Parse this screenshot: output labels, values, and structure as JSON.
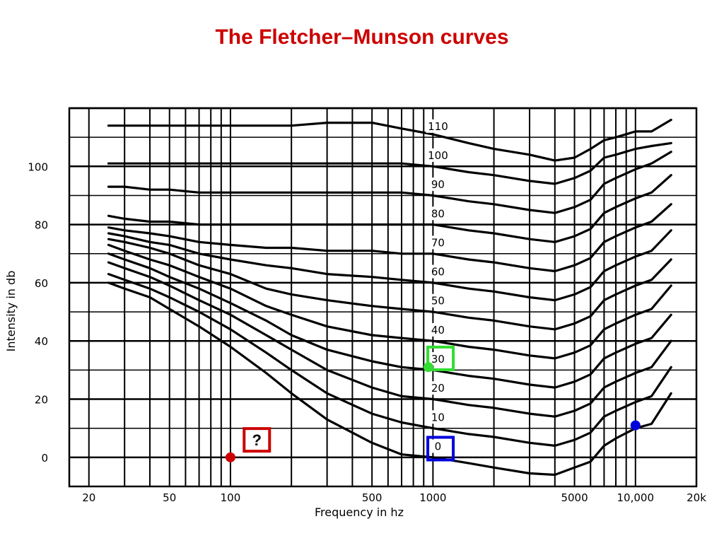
{
  "slide": {
    "title": "The Fletcher–Munson curves"
  },
  "chart_data": {
    "type": "line",
    "title": "",
    "xlabel": "Frequency in hz",
    "ylabel": "Intensity in db",
    "x_scale": "log",
    "xlim": [
      16,
      20000
    ],
    "ylim": [
      -10,
      120
    ],
    "grid": true,
    "x_tick_labels": [
      {
        "value": 20,
        "label": "20"
      },
      {
        "value": 50,
        "label": "50"
      },
      {
        "value": 100,
        "label": "100"
      },
      {
        "value": 500,
        "label": "500"
      },
      {
        "value": 1000,
        "label": "1000"
      },
      {
        "value": 5000,
        "label": "5000"
      },
      {
        "value": 10000,
        "label": "10,000"
      },
      {
        "value": 20000,
        "label": "20k"
      }
    ],
    "x_gridlines": [
      20,
      30,
      40,
      50,
      60,
      70,
      80,
      90,
      100,
      200,
      300,
      400,
      500,
      600,
      700,
      800,
      900,
      1000,
      2000,
      3000,
      4000,
      5000,
      6000,
      7000,
      8000,
      9000,
      10000,
      20000
    ],
    "y_tick_labels": [
      {
        "value": 0,
        "label": "0"
      },
      {
        "value": 20,
        "label": "20"
      },
      {
        "value": 40,
        "label": "40"
      },
      {
        "value": 60,
        "label": "60"
      },
      {
        "value": 80,
        "label": "80"
      },
      {
        "value": 100,
        "label": "100"
      }
    ],
    "y_gridlines": [
      -10,
      0,
      10,
      20,
      30,
      40,
      50,
      60,
      70,
      80,
      90,
      100,
      110,
      120
    ],
    "series": [
      {
        "name": "0",
        "label_at_1k": {
          "x": 1050,
          "y": 3
        },
        "x": [
          25,
          30,
          40,
          50,
          70,
          100,
          150,
          200,
          300,
          500,
          700,
          1000,
          1500,
          2000,
          3000,
          4000,
          5000,
          6000,
          7000,
          8000,
          10000,
          12000,
          15000
        ],
        "y": [
          60,
          58,
          55,
          51,
          45,
          38,
          29,
          22,
          13,
          5,
          1,
          0,
          -2,
          -3.5,
          -5.5,
          -6,
          -3.5,
          -1.5,
          4,
          6.5,
          10,
          11.5,
          22
        ]
      },
      {
        "name": "10",
        "label_at_1k": {
          "x": 1050,
          "y": 13
        },
        "x": [
          25,
          30,
          40,
          50,
          70,
          100,
          150,
          200,
          300,
          500,
          700,
          1000,
          1500,
          2000,
          3000,
          4000,
          5000,
          6000,
          7000,
          8000,
          10000,
          12000,
          15000
        ],
        "y": [
          63,
          61,
          58,
          55,
          50,
          44,
          36,
          30,
          22,
          15,
          12,
          10,
          8,
          7,
          5,
          4,
          6,
          8.5,
          14,
          16,
          19,
          21,
          31
        ]
      },
      {
        "name": "20",
        "label_at_1k": {
          "x": 1050,
          "y": 23
        },
        "x": [
          25,
          30,
          40,
          50,
          70,
          100,
          150,
          200,
          300,
          500,
          700,
          1000,
          1500,
          2000,
          3000,
          4000,
          5000,
          6000,
          7000,
          8000,
          10000,
          12000,
          15000
        ],
        "y": [
          67,
          65,
          62,
          59,
          54,
          49,
          42,
          37,
          30,
          24,
          21,
          20,
          18,
          17,
          15,
          14,
          16,
          18.5,
          24,
          26,
          29,
          31,
          40
        ]
      },
      {
        "name": "30",
        "label_at_1k": {
          "x": 1050,
          "y": 33
        },
        "x": [
          25,
          30,
          40,
          50,
          70,
          100,
          150,
          200,
          300,
          500,
          700,
          1000,
          1500,
          2000,
          3000,
          4000,
          5000,
          6000,
          7000,
          8000,
          10000,
          12000,
          15000
        ],
        "y": [
          70,
          68,
          65,
          62,
          58,
          53,
          47,
          42,
          37,
          33,
          31,
          30,
          28,
          27,
          25,
          24,
          26,
          28.5,
          34,
          36,
          39,
          41,
          49
        ]
      },
      {
        "name": "40",
        "label_at_1k": {
          "x": 1050,
          "y": 43
        },
        "x": [
          25,
          30,
          40,
          50,
          70,
          100,
          150,
          200,
          300,
          500,
          700,
          1000,
          1500,
          2000,
          3000,
          4000,
          5000,
          6000,
          7000,
          8000,
          10000,
          12000,
          15000
        ],
        "y": [
          73,
          71,
          68,
          66,
          62,
          58,
          52,
          49,
          45,
          42,
          41,
          40,
          38,
          37,
          35,
          34,
          36,
          38.5,
          44,
          46,
          49,
          51,
          59
        ]
      },
      {
        "name": "50",
        "label_at_1k": {
          "x": 1050,
          "y": 53
        },
        "x": [
          25,
          30,
          40,
          50,
          70,
          100,
          150,
          200,
          300,
          500,
          700,
          1000,
          1500,
          2000,
          3000,
          4000,
          5000,
          6000,
          7000,
          8000,
          10000,
          12000,
          15000
        ],
        "y": [
          75,
          74,
          72,
          70,
          66,
          63,
          58,
          56,
          54,
          52,
          51,
          50,
          48,
          47,
          45,
          44,
          46,
          48.5,
          54,
          56,
          59,
          61,
          68
        ]
      },
      {
        "name": "60",
        "label_at_1k": {
          "x": 1050,
          "y": 63
        },
        "x": [
          25,
          30,
          40,
          50,
          70,
          100,
          150,
          200,
          300,
          500,
          700,
          1000,
          1500,
          2000,
          3000,
          4000,
          5000,
          6000,
          7000,
          8000,
          10000,
          12000,
          15000
        ],
        "y": [
          77,
          76,
          74,
          73,
          70,
          68,
          66,
          65,
          63,
          62,
          61,
          60,
          58,
          57,
          55,
          54,
          56,
          58.5,
          64,
          66,
          69,
          71,
          78
        ]
      },
      {
        "name": "70",
        "label_at_1k": {
          "x": 1050,
          "y": 73
        },
        "x": [
          25,
          30,
          40,
          50,
          70,
          100,
          150,
          200,
          300,
          500,
          700,
          1000,
          1500,
          2000,
          3000,
          4000,
          5000,
          6000,
          7000,
          8000,
          10000,
          12000,
          15000
        ],
        "y": [
          79,
          78,
          77,
          76,
          74,
          73,
          72,
          72,
          71,
          71,
          70,
          70,
          68,
          67,
          65,
          64,
          66,
          68.5,
          74,
          76,
          79,
          81,
          87
        ]
      },
      {
        "name": "80",
        "label_at_1k": {
          "x": 1050,
          "y": 83
        },
        "x": [
          25,
          30,
          40,
          50,
          70,
          100,
          150,
          200,
          300,
          500,
          700,
          1000,
          1500,
          2000,
          3000,
          4000,
          5000,
          6000,
          7000,
          8000,
          10000,
          12000,
          15000
        ],
        "y": [
          83,
          82,
          81,
          81,
          80,
          80,
          80,
          80,
          80,
          80,
          80,
          80,
          78,
          77,
          75,
          74,
          76,
          78.5,
          84,
          86,
          89,
          91,
          97
        ]
      },
      {
        "name": "90",
        "label_at_1k": {
          "x": 1050,
          "y": 93
        },
        "x": [
          25,
          30,
          40,
          50,
          70,
          100,
          150,
          200,
          300,
          500,
          700,
          1000,
          1500,
          2000,
          3000,
          4000,
          5000,
          6000,
          7000,
          8000,
          10000,
          12000,
          15000
        ],
        "y": [
          93,
          93,
          92,
          92,
          91,
          91,
          91,
          91,
          91,
          91,
          91,
          90,
          88,
          87,
          85,
          84,
          86,
          88.5,
          94,
          96,
          99,
          101,
          105
        ]
      },
      {
        "name": "100",
        "label_at_1k": {
          "x": 1050,
          "y": 103
        },
        "x": [
          25,
          30,
          40,
          50,
          70,
          100,
          150,
          200,
          300,
          500,
          700,
          1000,
          1500,
          2000,
          3000,
          4000,
          5000,
          6000,
          7000,
          8000,
          10000,
          12000,
          15000
        ],
        "y": [
          101,
          101,
          101,
          101,
          101,
          101,
          101,
          101,
          101,
          101,
          101,
          100,
          98,
          97,
          95,
          94,
          96,
          98.5,
          103,
          104,
          106,
          107,
          108
        ]
      },
      {
        "name": "110",
        "label_at_1k": {
          "x": 1050,
          "y": 113
        },
        "x": [
          25,
          30,
          40,
          50,
          70,
          100,
          150,
          200,
          300,
          500,
          700,
          1000,
          1500,
          2000,
          3000,
          4000,
          5000,
          6000,
          7000,
          8000,
          10000,
          12000,
          15000
        ],
        "y": [
          114,
          114,
          114,
          114,
          114,
          114,
          114,
          114,
          115,
          115,
          113,
          111,
          108,
          106,
          104,
          102,
          103,
          106,
          109,
          110,
          112,
          112,
          116
        ]
      }
    ],
    "annotations": [
      {
        "kind": "point",
        "name": "red-dot",
        "color": "#cc0000",
        "x": 100,
        "y": 0
      },
      {
        "kind": "point",
        "name": "green-dot",
        "color": "#33dd33",
        "x": 950,
        "y": 31
      },
      {
        "kind": "point",
        "name": "blue-dot",
        "color": "#0000dd",
        "x": 10000,
        "y": 11
      },
      {
        "kind": "box",
        "name": "question-box",
        "color": "#cc0000",
        "text": "?",
        "x": 135,
        "y": 6
      },
      {
        "kind": "box",
        "name": "green-box",
        "color": "#33dd33",
        "x": 1090,
        "y": 34
      },
      {
        "kind": "box",
        "name": "blue-box",
        "color": "#0000dd",
        "x": 1090,
        "y": 3
      }
    ]
  }
}
